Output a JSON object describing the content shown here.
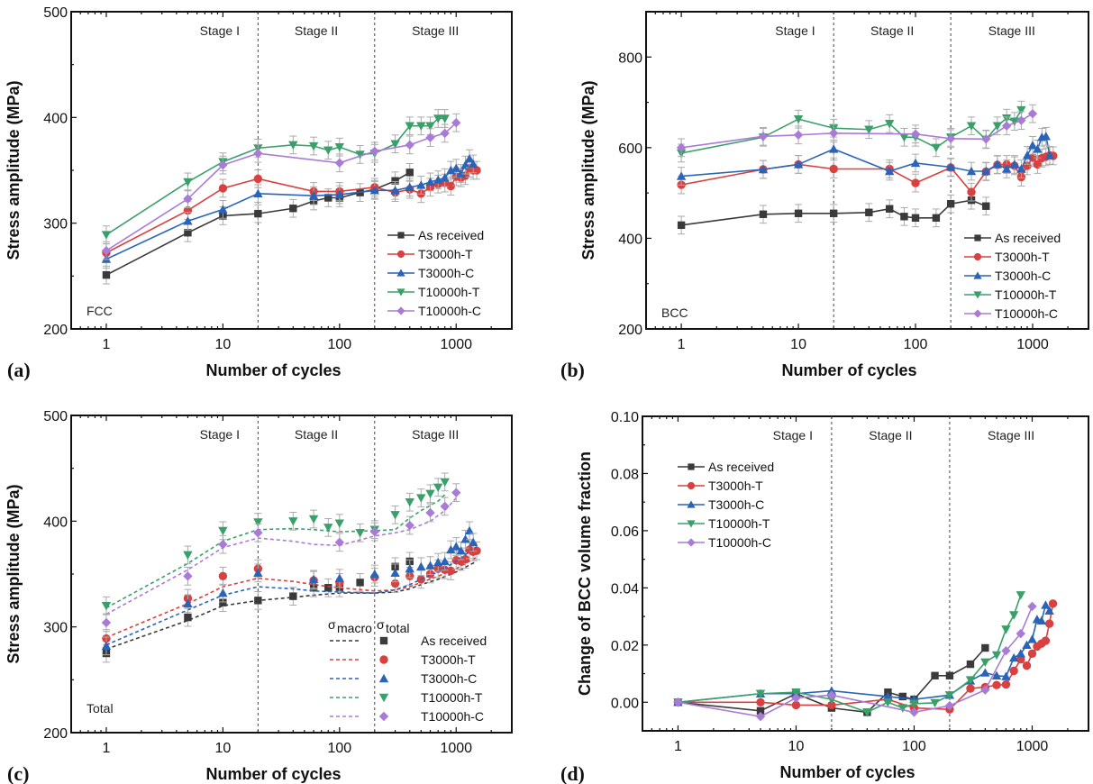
{
  "colors": {
    "As received": "#3a3a3a",
    "T3000h-T": "#d94040",
    "T3000h-C": "#2a64b8",
    "T10000h-T": "#3aa06a",
    "T10000h-C": "#a97bd6"
  },
  "markers": {
    "As received": "square",
    "T3000h-T": "circle",
    "T3000h-C": "triangle-up",
    "T10000h-T": "triangle-down",
    "T10000h-C": "diamond"
  },
  "chart_data": [
    {
      "id": "a",
      "panel_label": "(a)",
      "type": "line",
      "corner_text": "FCC",
      "xlabel": "Number of cycles",
      "ylabel": "Stress amplitude (MPa)",
      "xscale": "log",
      "xlim": [
        0.5,
        3000
      ],
      "ylim": [
        200,
        500
      ],
      "xticks": [
        "1",
        "10",
        "100",
        "1000"
      ],
      "yticks": [
        "200",
        "300",
        "400",
        "500"
      ],
      "stages": [
        "Stage I",
        "Stage II",
        "Stage III"
      ],
      "stage_boundaries": [
        20,
        200
      ],
      "legend_position": "bottom-right",
      "error_bars": true,
      "series": [
        {
          "name": "As received",
          "x": [
            1,
            5,
            10,
            20,
            40,
            60,
            80,
            100,
            150,
            200,
            300,
            400
          ],
          "y": [
            251,
            291,
            307,
            309,
            314,
            321,
            324,
            324,
            329,
            332,
            340,
            348
          ]
        },
        {
          "name": "T3000h-T",
          "x": [
            1,
            5,
            10,
            20,
            60,
            100,
            200,
            300,
            400,
            500,
            600,
            700,
            800,
            900,
            1000,
            1100,
            1200,
            1300,
            1400,
            1500
          ],
          "y": [
            272,
            312,
            333,
            342,
            330,
            330,
            334,
            329,
            332,
            328,
            334,
            337,
            338,
            335,
            344,
            343,
            345,
            352,
            350,
            350
          ]
        },
        {
          "name": "T3000h-C",
          "x": [
            1,
            5,
            10,
            20,
            60,
            100,
            200,
            300,
            400,
            500,
            600,
            700,
            800,
            900,
            1000,
            1100,
            1200,
            1300,
            1400
          ],
          "y": [
            266,
            302,
            313,
            328,
            326,
            327,
            331,
            331,
            334,
            336,
            339,
            341,
            343,
            350,
            352,
            347,
            355,
            361,
            356
          ]
        },
        {
          "name": "T10000h-T",
          "x": [
            1,
            5,
            10,
            20,
            40,
            60,
            80,
            100,
            150,
            200,
            300,
            400,
            500,
            600,
            700,
            800
          ],
          "y": [
            289,
            339,
            358,
            371,
            374,
            373,
            369,
            372,
            365,
            366,
            375,
            392,
            392,
            392,
            399,
            399
          ]
        },
        {
          "name": "T10000h-C",
          "x": [
            1,
            5,
            10,
            20,
            100,
            200,
            400,
            600,
            800,
            1000
          ],
          "y": [
            274,
            323,
            355,
            366,
            357,
            368,
            374,
            381,
            385,
            395
          ]
        }
      ]
    },
    {
      "id": "b",
      "panel_label": "(b)",
      "type": "line",
      "corner_text": "BCC",
      "xlabel": "Number of cycles",
      "ylabel": "Stress amplitude (MPa)",
      "xscale": "log",
      "xlim": [
        0.5,
        3000
      ],
      "ylim": [
        200,
        900
      ],
      "xticks": [
        "1",
        "10",
        "100",
        "1000"
      ],
      "yticks": [
        "200",
        "400",
        "600",
        "800"
      ],
      "stages": [
        "Stage I",
        "Stage II",
        "Stage III"
      ],
      "stage_boundaries": [
        20,
        200
      ],
      "legend_position": "bottom-right",
      "error_bars": true,
      "series": [
        {
          "name": "As received",
          "x": [
            1,
            5,
            10,
            20,
            40,
            60,
            80,
            100,
            150,
            200,
            300,
            400
          ],
          "y": [
            429,
            453,
            455,
            455,
            457,
            465,
            448,
            445,
            445,
            476,
            484,
            471
          ]
        },
        {
          "name": "T3000h-T",
          "x": [
            1,
            5,
            10,
            20,
            60,
            100,
            200,
            300,
            400,
            500,
            600,
            700,
            800,
            900,
            1000,
            1100,
            1200,
            1300,
            1400,
            1500
          ],
          "y": [
            518,
            552,
            563,
            553,
            553,
            522,
            556,
            502,
            547,
            562,
            563,
            560,
            535,
            560,
            578,
            563,
            577,
            580,
            583,
            582
          ]
        },
        {
          "name": "T3000h-C",
          "x": [
            1,
            5,
            10,
            20,
            60,
            100,
            200,
            300,
            400,
            500,
            600,
            700,
            800,
            900,
            1000,
            1100,
            1200,
            1300,
            1400
          ],
          "y": [
            537,
            552,
            563,
            597,
            548,
            566,
            557,
            548,
            548,
            563,
            553,
            563,
            553,
            583,
            605,
            597,
            623,
            625,
            583
          ]
        },
        {
          "name": "T10000h-T",
          "x": [
            1,
            5,
            10,
            20,
            40,
            60,
            80,
            100,
            150,
            200,
            300,
            400,
            500,
            600,
            700,
            800
          ],
          "y": [
            588,
            623,
            663,
            643,
            640,
            653,
            623,
            623,
            600,
            623,
            648,
            618,
            648,
            665,
            658,
            683
          ]
        },
        {
          "name": "T10000h-C",
          "x": [
            1,
            5,
            10,
            20,
            100,
            200,
            400,
            600,
            800,
            1000
          ],
          "y": [
            600,
            625,
            628,
            632,
            630,
            620,
            619,
            648,
            660,
            675
          ]
        }
      ]
    },
    {
      "id": "c",
      "panel_label": "(c)",
      "type": "scatter",
      "corner_text": "Total",
      "xlabel": "Number of cycles",
      "ylabel": "Stress amplitude (MPa)",
      "xscale": "log",
      "xlim": [
        0.5,
        3000
      ],
      "ylim": [
        200,
        500
      ],
      "xticks": [
        "1",
        "10",
        "100",
        "1000"
      ],
      "yticks": [
        "200",
        "300",
        "400",
        "500"
      ],
      "stages": [
        "Stage I",
        "Stage II",
        "Stage III"
      ],
      "stage_boundaries": [
        20,
        200
      ],
      "legend_position": "bottom-right",
      "legend_header": {
        "macro": "σ",
        "macro_sub": "macro",
        "total": "σ",
        "total_sub": "total"
      },
      "error_bars": true,
      "series": [
        {
          "name": "As received",
          "x": [
            1,
            5,
            10,
            20,
            40,
            60,
            80,
            100,
            150,
            300,
            400
          ],
          "y": [
            275,
            309,
            323,
            325,
            329,
            337,
            337,
            337,
            342,
            357,
            362
          ],
          "macro_x": [
            1,
            5,
            10,
            20,
            40,
            60,
            100,
            200,
            300,
            400,
            500,
            700,
            1000,
            1500
          ],
          "macro_y": [
            279,
            306,
            320,
            325,
            328,
            330,
            332,
            332,
            333,
            336,
            340,
            345,
            352,
            362
          ]
        },
        {
          "name": "T3000h-T",
          "x": [
            1,
            5,
            10,
            20,
            60,
            100,
            200,
            300,
            400,
            500,
            600,
            700,
            800,
            900,
            1000,
            1100,
            1200,
            1300,
            1400,
            1500
          ],
          "y": [
            289,
            327,
            348,
            355,
            344,
            342,
            347,
            341,
            348,
            345,
            350,
            355,
            354,
            353,
            363,
            362,
            364,
            373,
            371,
            372
          ],
          "macro_x": [
            1,
            5,
            10,
            20,
            40,
            60,
            100,
            200,
            300,
            400,
            500,
            700,
            1000,
            1500
          ],
          "macro_y": [
            290,
            322,
            338,
            346,
            343,
            340,
            337,
            334,
            335,
            338,
            342,
            348,
            355,
            366
          ]
        },
        {
          "name": "T3000h-C",
          "x": [
            1,
            5,
            10,
            20,
            60,
            100,
            200,
            300,
            400,
            500,
            600,
            700,
            800,
            900,
            1000,
            1100,
            1200,
            1300,
            1400
          ],
          "y": [
            282,
            322,
            332,
            351,
            345,
            346,
            350,
            351,
            355,
            357,
            358,
            361,
            362,
            373,
            376,
            372,
            383,
            391,
            380
          ],
          "macro_x": [
            1,
            5,
            10,
            20,
            40,
            60,
            100,
            200,
            300,
            400,
            500,
            700,
            1000,
            1500
          ],
          "macro_y": [
            283,
            316,
            330,
            338,
            336,
            334,
            333,
            332,
            335,
            340,
            345,
            352,
            362,
            376
          ]
        },
        {
          "name": "T10000h-T",
          "x": [
            1,
            5,
            10,
            20,
            40,
            60,
            80,
            100,
            150,
            200,
            300,
            400,
            500,
            600,
            700,
            800
          ],
          "y": [
            320,
            368,
            391,
            399,
            400,
            402,
            394,
            398,
            389,
            392,
            406,
            418,
            422,
            426,
            432,
            437
          ],
          "macro_x": [
            1,
            5,
            10,
            20,
            40,
            60,
            100,
            200,
            300,
            400,
            500,
            700,
            800
          ],
          "macro_y": [
            318,
            360,
            381,
            392,
            393,
            392,
            390,
            391,
            392,
            403,
            410,
            419,
            425
          ]
        },
        {
          "name": "T10000h-C",
          "x": [
            1,
            5,
            10,
            20,
            100,
            200,
            400,
            600,
            800,
            1000
          ],
          "y": [
            304,
            348,
            378,
            389,
            380,
            390,
            396,
            408,
            414,
            427
          ],
          "macro_x": [
            1,
            5,
            10,
            20,
            40,
            60,
            100,
            200,
            300,
            400,
            600,
            800,
            1000
          ],
          "macro_y": [
            312,
            354,
            375,
            384,
            381,
            378,
            377,
            386,
            389,
            392,
            400,
            410,
            422
          ]
        }
      ]
    },
    {
      "id": "d",
      "panel_label": "(d)",
      "type": "line",
      "corner_text": "",
      "xlabel": "Number of cycles",
      "ylabel": "Change of BCC volume fraction",
      "xscale": "log",
      "xlim": [
        0.5,
        3000
      ],
      "ylim": [
        -0.01,
        0.1
      ],
      "xticks": [
        "1",
        "10",
        "100",
        "1000"
      ],
      "yticks": [
        "0.00",
        "0.02",
        "0.04",
        "0.06",
        "0.08",
        "0.10"
      ],
      "stages": [
        "Stage I",
        "Stage II",
        "Stage III"
      ],
      "stage_boundaries": [
        20,
        200
      ],
      "legend_position": "top-left",
      "error_bars": false,
      "series": [
        {
          "name": "As received",
          "x": [
            1,
            5,
            10,
            20,
            40,
            60,
            80,
            100,
            150,
            200,
            300,
            400
          ],
          "y": [
            0,
            -0.003,
            0.003,
            -0.002,
            -0.0035,
            0.0035,
            0.002,
            0.001,
            0.0093,
            0.0093,
            0.0133,
            0.019
          ]
        },
        {
          "name": "T3000h-T",
          "x": [
            1,
            5,
            10,
            20,
            60,
            100,
            200,
            300,
            400,
            500,
            600,
            700,
            800,
            900,
            1000,
            1100,
            1200,
            1300,
            1400,
            1500
          ],
          "y": [
            0,
            0,
            -0.001,
            -0.001,
            0.001,
            -0.002,
            -0.0025,
            0.0048,
            0.0053,
            0.006,
            0.0062,
            0.011,
            0.015,
            0.0128,
            0.017,
            0.0195,
            0.0205,
            0.0215,
            0.0275,
            0.0345
          ]
        },
        {
          "name": "T3000h-C",
          "x": [
            1,
            5,
            10,
            20,
            60,
            100,
            200,
            300,
            400,
            500,
            600,
            700,
            800,
            900,
            1000,
            1100,
            1200,
            1300,
            1400
          ],
          "y": [
            0,
            0.003,
            0.003,
            0.004,
            0.002,
            0.001,
            0.0025,
            0.0075,
            0.0103,
            0.0093,
            0.009,
            0.0155,
            0.017,
            0.02,
            0.022,
            0.029,
            0.0285,
            0.034,
            0.032
          ]
        },
        {
          "name": "T10000h-T",
          "x": [
            1,
            5,
            10,
            20,
            40,
            60,
            80,
            100,
            150,
            200,
            300,
            400,
            500,
            600,
            700,
            800
          ],
          "y": [
            0,
            0.003,
            0.0035,
            0.001,
            -0.0035,
            0,
            -0.002,
            -0.0005,
            -0.0002,
            0.0025,
            0.0078,
            0.014,
            0.0165,
            0.0255,
            0.0305,
            0.0375
          ]
        },
        {
          "name": "T10000h-C",
          "x": [
            1,
            5,
            10,
            20,
            100,
            200,
            400,
            600,
            800,
            1000
          ],
          "y": [
            0,
            -0.005,
            0.0015,
            0.0025,
            -0.0035,
            -0.0012,
            0.0043,
            0.018,
            0.024,
            0.0335
          ]
        }
      ]
    }
  ]
}
